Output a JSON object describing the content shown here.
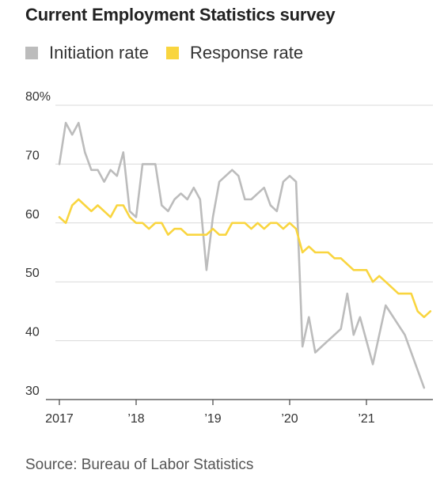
{
  "title": "Current Employment Statistics survey",
  "source": "Source: Bureau of Labor Statistics",
  "legend": [
    {
      "label": "Initiation rate",
      "color": "#bcbcbc"
    },
    {
      "label": "Response rate",
      "color": "#f9d53f"
    }
  ],
  "chart_data": {
    "type": "line",
    "title": "Current Employment Statistics survey",
    "xlabel": "",
    "ylabel": "",
    "xlim": [
      2017.0,
      2021.9
    ],
    "ylim": [
      30,
      80
    ],
    "yticks": [
      30,
      40,
      50,
      60,
      70,
      80
    ],
    "ytick_labels": [
      "30",
      "40",
      "50",
      "60",
      "70",
      "80%"
    ],
    "xticks": [
      2017,
      2018,
      2019,
      2020,
      2021
    ],
    "xtick_labels": [
      "2017",
      "’18",
      "’19",
      "’20",
      "’21"
    ],
    "grid": true,
    "legend_position": "top-left",
    "series": [
      {
        "name": "Initiation rate",
        "color": "#bcbcbc",
        "points": [
          [
            2017.0,
            70
          ],
          [
            2017.083,
            77
          ],
          [
            2017.167,
            75
          ],
          [
            2017.25,
            77
          ],
          [
            2017.333,
            72
          ],
          [
            2017.417,
            69
          ],
          [
            2017.5,
            69
          ],
          [
            2017.583,
            67
          ],
          [
            2017.667,
            69
          ],
          [
            2017.75,
            68
          ],
          [
            2017.833,
            72
          ],
          [
            2017.917,
            62
          ],
          [
            2018.0,
            61
          ],
          [
            2018.083,
            70
          ],
          [
            2018.167,
            70
          ],
          [
            2018.25,
            70
          ],
          [
            2018.333,
            63
          ],
          [
            2018.417,
            62
          ],
          [
            2018.5,
            64
          ],
          [
            2018.583,
            65
          ],
          [
            2018.667,
            64
          ],
          [
            2018.75,
            66
          ],
          [
            2018.833,
            64
          ],
          [
            2018.917,
            52
          ],
          [
            2019.0,
            61
          ],
          [
            2019.083,
            67
          ],
          [
            2019.167,
            68
          ],
          [
            2019.25,
            69
          ],
          [
            2019.333,
            68
          ],
          [
            2019.417,
            64
          ],
          [
            2019.5,
            64
          ],
          [
            2019.583,
            65
          ],
          [
            2019.667,
            66
          ],
          [
            2019.75,
            63
          ],
          [
            2019.833,
            62
          ],
          [
            2019.917,
            67
          ],
          [
            2020.0,
            68
          ],
          [
            2020.083,
            67
          ],
          [
            2020.167,
            39
          ],
          [
            2020.25,
            44
          ],
          [
            2020.333,
            38
          ],
          [
            2020.417,
            39
          ],
          [
            2020.5,
            40
          ],
          [
            2020.583,
            41
          ],
          [
            2020.667,
            42
          ],
          [
            2020.75,
            48
          ],
          [
            2020.833,
            41
          ],
          [
            2020.917,
            44
          ],
          [
            2021.0,
            40
          ],
          [
            2021.083,
            36
          ],
          [
            2021.25,
            46
          ],
          [
            2021.5,
            41
          ],
          [
            2021.75,
            32
          ]
        ]
      },
      {
        "name": "Response rate",
        "color": "#f9d53f",
        "points": [
          [
            2017.0,
            61
          ],
          [
            2017.083,
            60
          ],
          [
            2017.167,
            63
          ],
          [
            2017.25,
            64
          ],
          [
            2017.333,
            63
          ],
          [
            2017.417,
            62
          ],
          [
            2017.5,
            63
          ],
          [
            2017.583,
            62
          ],
          [
            2017.667,
            61
          ],
          [
            2017.75,
            63
          ],
          [
            2017.833,
            63
          ],
          [
            2017.917,
            61
          ],
          [
            2018.0,
            60
          ],
          [
            2018.083,
            60
          ],
          [
            2018.167,
            59
          ],
          [
            2018.25,
            60
          ],
          [
            2018.333,
            60
          ],
          [
            2018.417,
            58
          ],
          [
            2018.5,
            59
          ],
          [
            2018.583,
            59
          ],
          [
            2018.667,
            58
          ],
          [
            2018.75,
            58
          ],
          [
            2018.833,
            58
          ],
          [
            2018.917,
            58
          ],
          [
            2019.0,
            59
          ],
          [
            2019.083,
            58
          ],
          [
            2019.167,
            58
          ],
          [
            2019.25,
            60
          ],
          [
            2019.333,
            60
          ],
          [
            2019.417,
            60
          ],
          [
            2019.5,
            59
          ],
          [
            2019.583,
            60
          ],
          [
            2019.667,
            59
          ],
          [
            2019.75,
            60
          ],
          [
            2019.833,
            60
          ],
          [
            2019.917,
            59
          ],
          [
            2020.0,
            60
          ],
          [
            2020.083,
            59
          ],
          [
            2020.167,
            55
          ],
          [
            2020.25,
            56
          ],
          [
            2020.333,
            55
          ],
          [
            2020.417,
            55
          ],
          [
            2020.5,
            55
          ],
          [
            2020.583,
            54
          ],
          [
            2020.667,
            54
          ],
          [
            2020.75,
            53
          ],
          [
            2020.833,
            52
          ],
          [
            2020.917,
            52
          ],
          [
            2021.0,
            52
          ],
          [
            2021.083,
            50
          ],
          [
            2021.167,
            51
          ],
          [
            2021.25,
            50
          ],
          [
            2021.333,
            49
          ],
          [
            2021.417,
            48
          ],
          [
            2021.5,
            48
          ],
          [
            2021.583,
            48
          ],
          [
            2021.667,
            45
          ],
          [
            2021.75,
            44
          ],
          [
            2021.833,
            45
          ]
        ]
      }
    ]
  }
}
